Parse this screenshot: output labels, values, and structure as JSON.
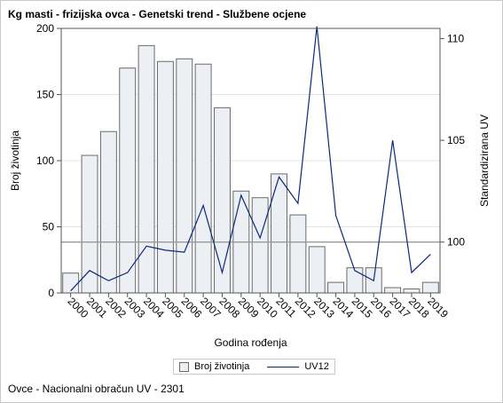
{
  "title": "Kg masti - frizijska ovca - Genetski trend - Službene ocjene",
  "footnote": "Ovce - Nacionalni obračun UV - 2301",
  "colors": {
    "bar_fill": "#eceff4",
    "bar_stroke": "#6b6b6b",
    "line": "#0b2a7a",
    "grid": "#e4e4e4",
    "ref_line": "#9a9a9a",
    "axis": "#555555"
  },
  "chart_data": {
    "type": "bar",
    "title": "Kg masti - frizijska ovca - Genetski trend - Službene ocjene",
    "xlabel": "Godina rođenja",
    "ylabel": "Broj životinja",
    "y2label": "Standardizirana UV",
    "categories": [
      "2000",
      "2001",
      "2002",
      "2003",
      "2004",
      "2005",
      "2006",
      "2007",
      "2008",
      "2009",
      "2010",
      "2011",
      "2012",
      "2013",
      "2014",
      "2015",
      "2016",
      "2017",
      "2018",
      "2019"
    ],
    "ylim": [
      0,
      200
    ],
    "yticks": [
      0,
      50,
      100,
      150,
      200
    ],
    "y2lim": [
      97.5,
      110.5
    ],
    "y2ticks": [
      100,
      105,
      110
    ],
    "y2_reference": 100,
    "grid": true,
    "legend_position": "bottom",
    "series": [
      {
        "name": "Broj životinja",
        "kind": "bar",
        "axis": "left",
        "values": [
          15,
          104,
          122,
          170,
          187,
          175,
          177,
          173,
          140,
          77,
          72,
          90,
          59,
          35,
          8,
          19,
          19,
          4,
          3,
          8
        ]
      },
      {
        "name": "UV12",
        "kind": "line",
        "axis": "right",
        "values": [
          97.6,
          98.6,
          98.1,
          98.5,
          99.8,
          99.6,
          99.5,
          101.8,
          98.5,
          102.3,
          100.2,
          103.2,
          101.9,
          110.6,
          101.3,
          98.6,
          98.1,
          105.0,
          98.5,
          99.4
        ]
      }
    ]
  }
}
